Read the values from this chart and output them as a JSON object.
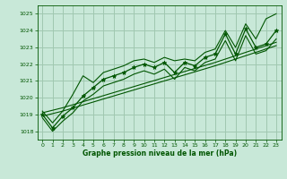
{
  "xlabel": "Graphe pression niveau de la mer (hPa)",
  "ylabel": "",
  "bg_color": "#c8e8d8",
  "grid_color": "#a0c8b0",
  "line_color": "#005500",
  "marker_color": "#005500",
  "hours": [
    0,
    1,
    2,
    3,
    4,
    5,
    6,
    7,
    8,
    9,
    10,
    11,
    12,
    13,
    14,
    15,
    16,
    17,
    18,
    19,
    20,
    21,
    22,
    23
  ],
  "pressure_main": [
    1019.0,
    1018.2,
    1018.9,
    1019.4,
    1020.1,
    1020.6,
    1021.1,
    1021.3,
    1021.5,
    1021.8,
    1022.0,
    1021.8,
    1022.1,
    1021.5,
    1022.1,
    1021.9,
    1022.4,
    1022.6,
    1023.8,
    1022.6,
    1024.1,
    1023.0,
    1023.2,
    1024.0
  ],
  "pressure_upper": [
    1019.2,
    1018.5,
    1019.2,
    1020.2,
    1021.3,
    1020.9,
    1021.5,
    1021.7,
    1021.9,
    1022.2,
    1022.3,
    1022.1,
    1022.4,
    1022.2,
    1022.3,
    1022.2,
    1022.7,
    1022.9,
    1024.0,
    1023.0,
    1024.4,
    1023.5,
    1024.7,
    1025.0
  ],
  "pressure_lower": [
    1018.8,
    1018.0,
    1018.6,
    1019.1,
    1019.8,
    1020.2,
    1020.7,
    1020.9,
    1021.1,
    1021.4,
    1021.6,
    1021.4,
    1021.7,
    1021.1,
    1021.8,
    1021.6,
    1022.1,
    1022.3,
    1023.4,
    1022.2,
    1023.7,
    1022.6,
    1022.8,
    1023.5
  ],
  "pressure_trend1": [
    1018.9,
    1019.05,
    1019.2,
    1019.38,
    1019.56,
    1019.74,
    1019.92,
    1020.1,
    1020.28,
    1020.46,
    1020.64,
    1020.82,
    1021.0,
    1021.18,
    1021.36,
    1021.54,
    1021.72,
    1021.9,
    1022.1,
    1022.3,
    1022.5,
    1022.7,
    1022.9,
    1023.1
  ],
  "pressure_trend2": [
    1019.1,
    1019.25,
    1019.4,
    1019.58,
    1019.76,
    1019.94,
    1020.12,
    1020.3,
    1020.48,
    1020.66,
    1020.84,
    1021.02,
    1021.2,
    1021.38,
    1021.56,
    1021.74,
    1021.92,
    1022.1,
    1022.3,
    1022.5,
    1022.7,
    1022.9,
    1023.1,
    1023.3
  ],
  "ylim": [
    1017.5,
    1025.5
  ],
  "yticks": [
    1018,
    1019,
    1020,
    1021,
    1022,
    1023,
    1024,
    1025
  ],
  "xticks": [
    0,
    1,
    2,
    3,
    4,
    5,
    6,
    7,
    8,
    9,
    10,
    11,
    12,
    13,
    14,
    15,
    16,
    17,
    18,
    19,
    20,
    21,
    22,
    23
  ]
}
